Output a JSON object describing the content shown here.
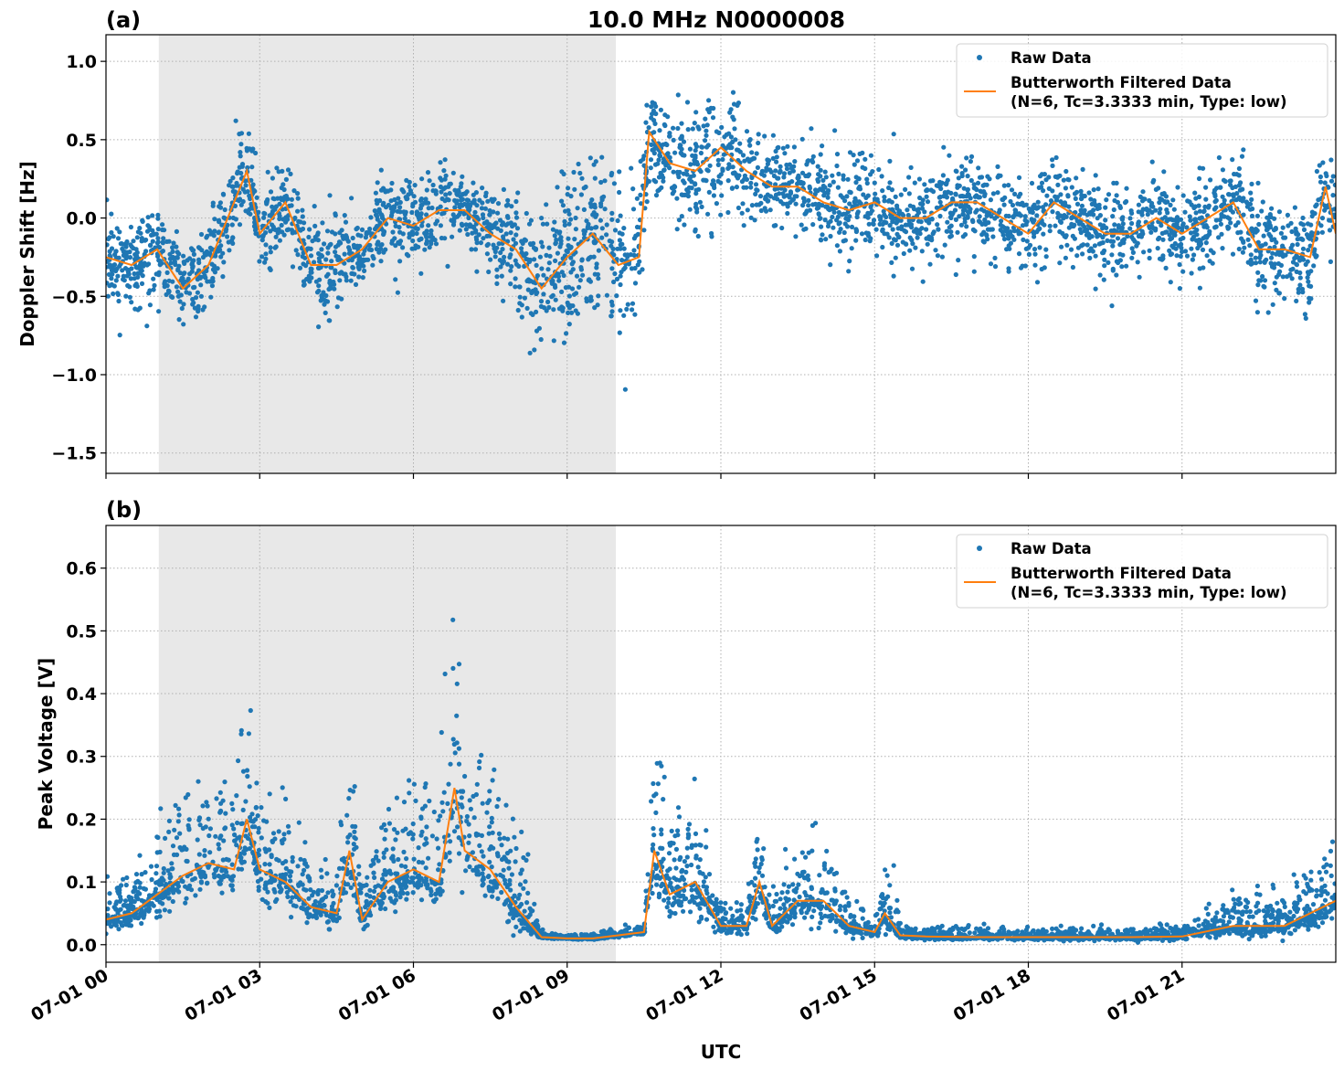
{
  "title": "10.0 MHz N0000008",
  "xlabel": "UTC",
  "colors": {
    "raw": "#1f77b4",
    "filtered": "#ff7f0e",
    "shade": "#e8e8e8"
  },
  "legend": {
    "raw": "Raw Data",
    "filtered_line1": "Butterworth Filtered Data",
    "filtered_line2": "(N=6, Tc=3.3333 min, Type: low)",
    "placement": "upper-right"
  },
  "x_ticks": {
    "values": [
      0,
      3,
      6,
      9,
      12,
      15,
      18,
      21
    ],
    "labels": [
      "07-01 00",
      "07-01 03",
      "07-01 06",
      "07-01 09",
      "07-01 12",
      "07-01 15",
      "07-01 18",
      "07-01 21"
    ]
  },
  "chart_data": [
    {
      "type": "scatter+line",
      "panel_label": "(a)",
      "ylabel": "Doppler Shift [Hz]",
      "xlim_hours": [
        0,
        24
      ],
      "ylim": [
        -1.63,
        1.17
      ],
      "grid": true,
      "y_ticks": {
        "values": [
          1.0,
          0.5,
          0.0,
          -0.5,
          -1.0,
          -1.5
        ],
        "labels": [
          "1.0",
          "0.5",
          "0.0",
          "−0.5",
          "−1.0",
          "−1.5"
        ]
      },
      "shaded_hours": [
        1.03,
        9.95
      ],
      "filtered": {
        "x": [
          0,
          0.5,
          1,
          1.5,
          2,
          2.5,
          2.75,
          3,
          3.5,
          4,
          4.5,
          5,
          5.5,
          6,
          6.5,
          7,
          7.5,
          8,
          8.5,
          9,
          9.5,
          10,
          10.4,
          10.6,
          11,
          11.5,
          12,
          12.5,
          13,
          13.5,
          14,
          14.5,
          15,
          15.5,
          16,
          16.5,
          17,
          17.5,
          18,
          18.5,
          19,
          19.5,
          20,
          20.5,
          21,
          21.5,
          22,
          22.5,
          23,
          23.5,
          23.8,
          24
        ],
        "y": [
          -0.25,
          -0.3,
          -0.2,
          -0.45,
          -0.3,
          0.1,
          0.3,
          -0.1,
          0.1,
          -0.3,
          -0.3,
          -0.2,
          0.0,
          -0.05,
          0.05,
          0.05,
          -0.1,
          -0.2,
          -0.45,
          -0.25,
          -0.1,
          -0.3,
          -0.25,
          0.55,
          0.35,
          0.3,
          0.45,
          0.3,
          0.2,
          0.2,
          0.1,
          0.05,
          0.1,
          0.0,
          0.0,
          0.1,
          0.1,
          0.0,
          -0.1,
          0.1,
          0.0,
          -0.1,
          -0.1,
          0.0,
          -0.1,
          0.0,
          0.1,
          -0.2,
          -0.2,
          -0.25,
          0.2,
          -0.1
        ]
      },
      "raw_spread": [
        0.3,
        0.3,
        0.3,
        0.3,
        0.3,
        0.35,
        0.4,
        0.35,
        0.35,
        0.35,
        0.3,
        0.3,
        0.3,
        0.3,
        0.3,
        0.3,
        0.3,
        0.4,
        0.55,
        0.55,
        0.5,
        0.6,
        0.6,
        0.35,
        0.35,
        0.45,
        0.45,
        0.3,
        0.3,
        0.3,
        0.3,
        0.3,
        0.3,
        0.3,
        0.3,
        0.3,
        0.35,
        0.3,
        0.35,
        0.35,
        0.3,
        0.35,
        0.3,
        0.3,
        0.3,
        0.3,
        0.35,
        0.35,
        0.35,
        0.4,
        0.4,
        0.3
      ]
    },
    {
      "type": "scatter+line",
      "panel_label": "(b)",
      "ylabel": "Peak Voltage [V]",
      "xlim_hours": [
        0,
        24
      ],
      "ylim": [
        -0.028,
        0.668
      ],
      "grid": true,
      "y_ticks": {
        "values": [
          0.0,
          0.1,
          0.2,
          0.3,
          0.4,
          0.5,
          0.6
        ],
        "labels": [
          "0.0",
          "0.1",
          "0.2",
          "0.3",
          "0.4",
          "0.5",
          "0.6"
        ]
      },
      "shaded_hours": [
        1.03,
        9.95
      ],
      "filtered": {
        "x": [
          0,
          0.5,
          1,
          1.5,
          2,
          2.5,
          2.75,
          3,
          3.5,
          4,
          4.5,
          4.75,
          5,
          5.5,
          6,
          6.5,
          6.8,
          7,
          7.5,
          8,
          8.5,
          9,
          9.5,
          10,
          10.5,
          10.7,
          11,
          11.5,
          12,
          12.5,
          12.75,
          13,
          13.5,
          14,
          14.5,
          15,
          15.2,
          15.5,
          16,
          17,
          18,
          19,
          20,
          21,
          22,
          22.5,
          23,
          23.5,
          24
        ],
        "y": [
          0.04,
          0.05,
          0.08,
          0.11,
          0.13,
          0.12,
          0.2,
          0.12,
          0.1,
          0.06,
          0.05,
          0.15,
          0.04,
          0.1,
          0.12,
          0.1,
          0.25,
          0.15,
          0.12,
          0.06,
          0.012,
          0.01,
          0.01,
          0.015,
          0.02,
          0.15,
          0.08,
          0.1,
          0.03,
          0.03,
          0.1,
          0.03,
          0.07,
          0.07,
          0.03,
          0.02,
          0.05,
          0.015,
          0.013,
          0.012,
          0.012,
          0.012,
          0.012,
          0.013,
          0.03,
          0.03,
          0.03,
          0.05,
          0.07
        ]
      },
      "raw_spread": [
        0.05,
        0.05,
        0.08,
        0.1,
        0.12,
        0.12,
        0.15,
        0.12,
        0.1,
        0.07,
        0.06,
        0.15,
        0.05,
        0.1,
        0.12,
        0.12,
        0.3,
        0.15,
        0.12,
        0.1,
        0.006,
        0.005,
        0.005,
        0.008,
        0.01,
        0.18,
        0.1,
        0.12,
        0.03,
        0.03,
        0.12,
        0.04,
        0.08,
        0.08,
        0.04,
        0.02,
        0.08,
        0.015,
        0.012,
        0.012,
        0.012,
        0.012,
        0.012,
        0.015,
        0.04,
        0.04,
        0.04,
        0.06,
        0.08
      ]
    }
  ]
}
